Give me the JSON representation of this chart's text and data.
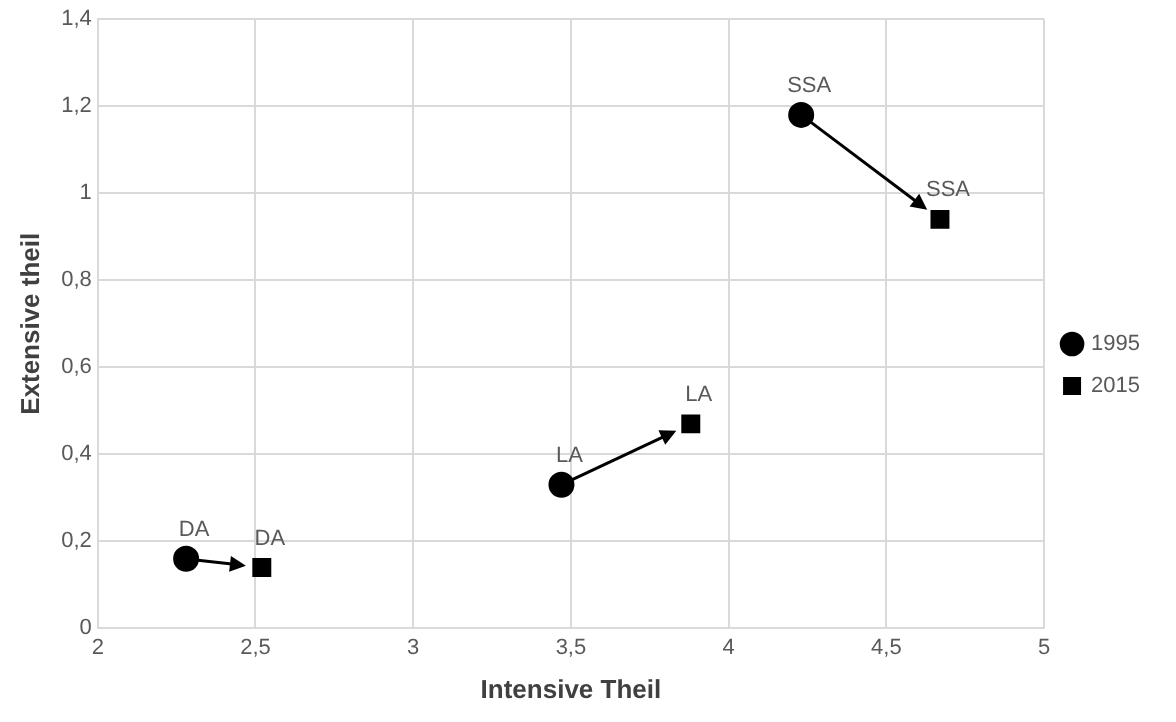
{
  "chart_data": {
    "type": "scatter",
    "xlabel": "Intensive Theil",
    "ylabel": "Extensive theil",
    "series": [
      {
        "name": "1995",
        "color": "#000000",
        "marker": "circle",
        "x": [
          2.28,
          3.47,
          4.23
        ],
        "values": [
          0.16,
          0.33,
          1.18
        ]
      },
      {
        "name": "2015",
        "color": "#000000",
        "marker": "square",
        "x": [
          2.52,
          3.88,
          4.67
        ],
        "values": [
          0.14,
          0.47,
          0.94
        ]
      }
    ],
    "annotations": [
      {
        "text": "DA",
        "x": 2.28,
        "y": 0.16
      },
      {
        "text": "LA",
        "x": 3.47,
        "y": 0.33
      },
      {
        "text": "SSA",
        "x": 4.23,
        "y": 1.18
      },
      {
        "text": "DA",
        "x": 2.52,
        "y": 0.14
      },
      {
        "text": "LA",
        "x": 3.88,
        "y": 0.47
      },
      {
        "text": "SSA",
        "x": 4.67,
        "y": 0.94
      }
    ],
    "xlim": [
      2,
      5
    ],
    "xticks": [
      2,
      {
        "value": 2.5,
        "label": "2,5"
      },
      3,
      {
        "value": 3.5,
        "label": "3,5"
      },
      4,
      {
        "value": 4.5,
        "label": "4,5"
      },
      5
    ],
    "ylim": [
      0,
      1.4
    ],
    "yticks": [
      0,
      {
        "value": 0.2,
        "label": "0,2"
      },
      {
        "value": 0.4,
        "label": "0,4"
      },
      {
        "value": 0.6,
        "label": "0,6"
      },
      {
        "value": 0.8,
        "label": "0,8"
      },
      1,
      {
        "value": 1.2,
        "label": "1,2"
      },
      {
        "value": 1.4,
        "label": "1,4"
      }
    ],
    "grid": true,
    "legend": "right"
  }
}
